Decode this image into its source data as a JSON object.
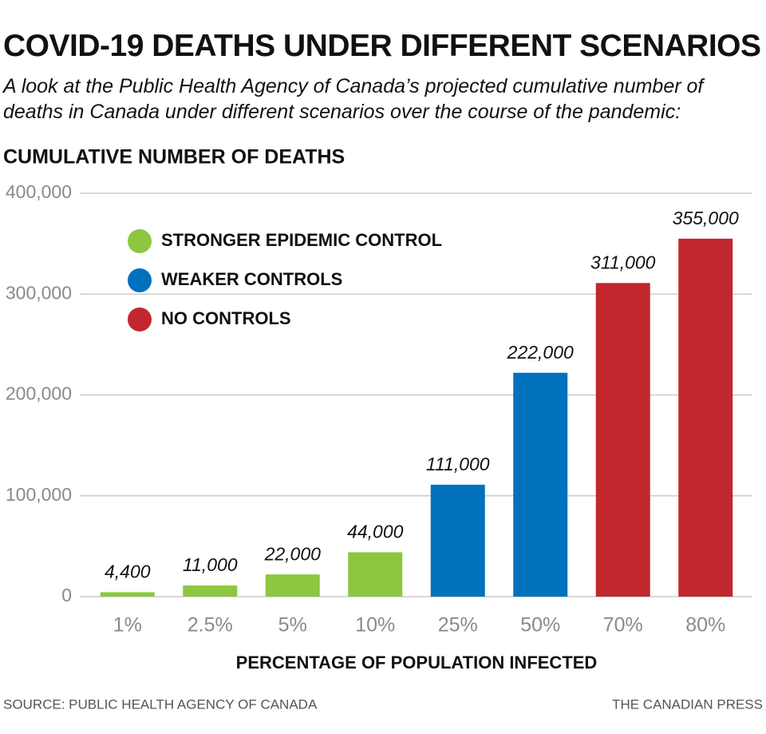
{
  "chart_data": {
    "type": "bar",
    "title": "COVID-19 DEATHS UNDER DIFFERENT SCENARIOS",
    "subtitle": "A look at the Public Health Agency of Canada’s projected cumulative number of deaths in Canada under different scenarios over the course of the pandemic:",
    "y_axis_title": "CUMULATIVE NUMBER OF DEATHS",
    "x_axis_title": "PERCENTAGE OF POPULATION INFECTED",
    "source": "SOURCE: PUBLIC HEALTH AGENCY OF CANADA",
    "credit": "THE CANADIAN PRESS",
    "categories": [
      "1%",
      "2.5%",
      "5%",
      "10%",
      "25%",
      "50%",
      "70%",
      "80%"
    ],
    "series": [
      {
        "name": "STRONGER EPIDEMIC CONTROL",
        "color": "#8dc63f",
        "values": [
          4400,
          11000,
          22000,
          44000,
          null,
          null,
          null,
          null
        ],
        "value_labels": [
          "4,400",
          "11,000",
          "22,000",
          "44,000",
          null,
          null,
          null,
          null
        ]
      },
      {
        "name": "WEAKER CONTROLS",
        "color": "#0071bc",
        "values": [
          null,
          null,
          null,
          null,
          111000,
          222000,
          null,
          null
        ],
        "value_labels": [
          null,
          null,
          null,
          null,
          "111,000",
          "222,000",
          null,
          null
        ]
      },
      {
        "name": "NO CONTROLS",
        "color": "#c1272d",
        "values": [
          null,
          null,
          null,
          null,
          null,
          null,
          311000,
          355000
        ],
        "value_labels": [
          null,
          null,
          null,
          null,
          null,
          null,
          "311,000",
          "355,000"
        ]
      }
    ],
    "ylim": [
      0,
      400000
    ],
    "yticks": [
      0,
      {
        "value": 100000,
        "label": "100,000"
      },
      {
        "value": 200000,
        "label": "200,000"
      },
      {
        "value": 300000,
        "label": "300,000"
      },
      {
        "value": 400000,
        "label": "400,000"
      }
    ],
    "grid": true
  }
}
